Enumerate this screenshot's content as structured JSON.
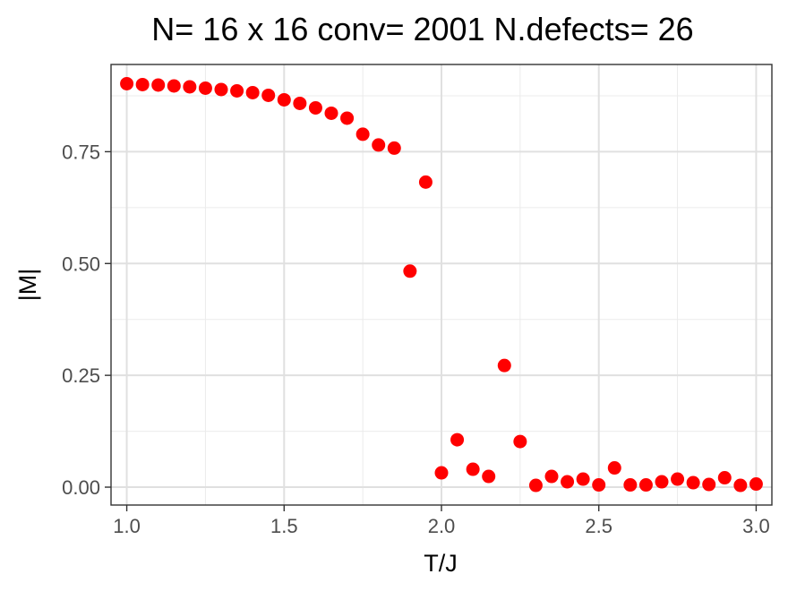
{
  "chart_data": {
    "type": "scatter",
    "title": "N= 16 x 16  conv= 2001  N.defects= 26",
    "xlabel": "T/J",
    "ylabel": "|M|",
    "xlim": [
      0.95,
      3.05
    ],
    "ylim": [
      -0.04,
      0.945
    ],
    "x_ticks": [
      1.0,
      1.5,
      2.0,
      2.5,
      3.0
    ],
    "x_tick_labels": [
      "1.0",
      "1.5",
      "2.0",
      "2.5",
      "3.0"
    ],
    "y_ticks": [
      0.0,
      0.25,
      0.5,
      0.75
    ],
    "y_tick_labels": [
      "0.00",
      "0.25",
      "0.50",
      "0.75"
    ],
    "grid": true,
    "point_color": "#ff0000",
    "x": [
      1.0,
      1.05,
      1.1,
      1.15,
      1.2,
      1.25,
      1.3,
      1.35,
      1.4,
      1.45,
      1.5,
      1.55,
      1.6,
      1.65,
      1.7,
      1.75,
      1.8,
      1.85,
      1.9,
      1.95,
      2.0,
      2.05,
      2.1,
      2.15,
      2.2,
      2.25,
      2.3,
      2.35,
      2.4,
      2.45,
      2.5,
      2.55,
      2.6,
      2.65,
      2.7,
      2.75,
      2.8,
      2.85,
      2.9,
      2.95,
      3.0
    ],
    "y": [
      0.902,
      0.9,
      0.899,
      0.897,
      0.895,
      0.892,
      0.889,
      0.886,
      0.882,
      0.876,
      0.866,
      0.858,
      0.848,
      0.836,
      0.825,
      0.789,
      0.765,
      0.758,
      0.483,
      0.682,
      0.032,
      0.106,
      0.04,
      0.024,
      0.272,
      0.102,
      0.004,
      0.024,
      0.012,
      0.018,
      0.005,
      0.043,
      0.005,
      0.005,
      0.012,
      0.018,
      0.01,
      0.006,
      0.021,
      0.004,
      0.007
    ]
  }
}
